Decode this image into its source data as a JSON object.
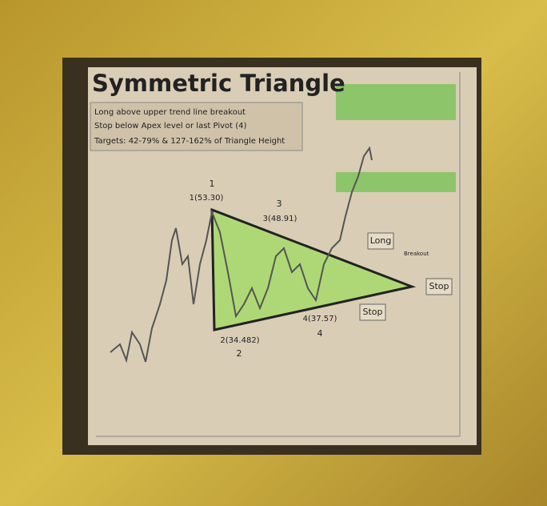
{
  "title": "Symmetric Triangle",
  "notes": [
    "Long above upper trend line breakout",
    "Stop below Apex level or last Pivot (4)",
    "Targets: 42-79% & 127-162% of Triangle Height"
  ],
  "pivots": [
    {
      "label": "1(53.30)",
      "marker": "1"
    },
    {
      "label": "2(34.482)",
      "marker": "2"
    },
    {
      "label": "3(48.91)",
      "marker": "3"
    },
    {
      "label": "4(37.57)",
      "marker": "4"
    }
  ],
  "long_label": "Long",
  "stop_apex_label": "Stop",
  "stop_pivot_label": "Stop",
  "breakout_label": "Breakout"
}
